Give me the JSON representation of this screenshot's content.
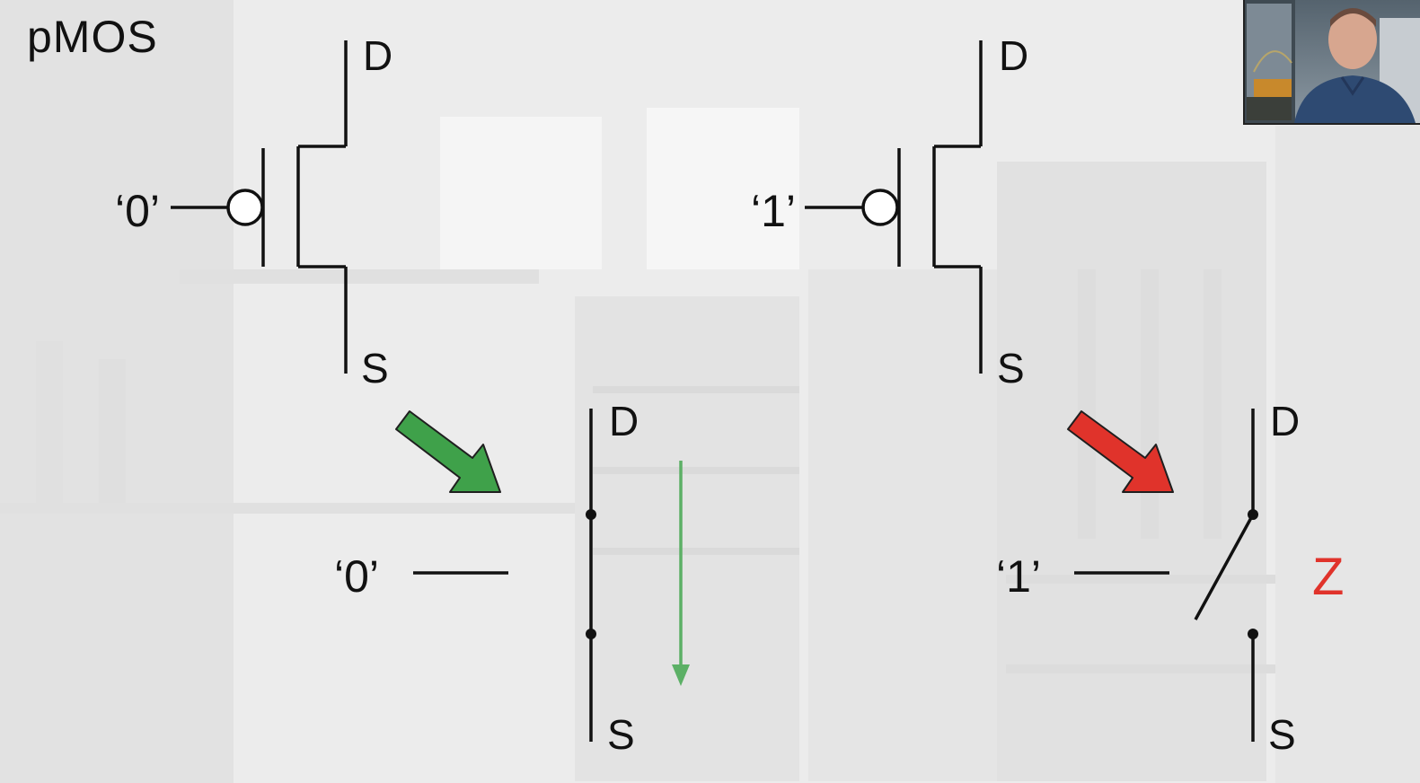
{
  "slide": {
    "title": "pMOS"
  },
  "diagram": {
    "left_symbol": {
      "gate_input": "‘0’",
      "drain_label": "D",
      "source_label": "S"
    },
    "right_symbol": {
      "gate_input": "‘1’",
      "drain_label": "D",
      "source_label": "S"
    },
    "closed_switch": {
      "gate_input": "‘0’",
      "drain_label": "D",
      "source_label": "S",
      "arrow_color": "#3fa14a",
      "current_color": "#5cb066"
    },
    "open_switch": {
      "gate_input": "‘1’",
      "drain_label": "D",
      "source_label": "S",
      "state_label": "Z",
      "state_color": "#e0332b",
      "arrow_color": "#e0332b"
    }
  },
  "webcam": {
    "icon": "presenter-video-icon"
  }
}
